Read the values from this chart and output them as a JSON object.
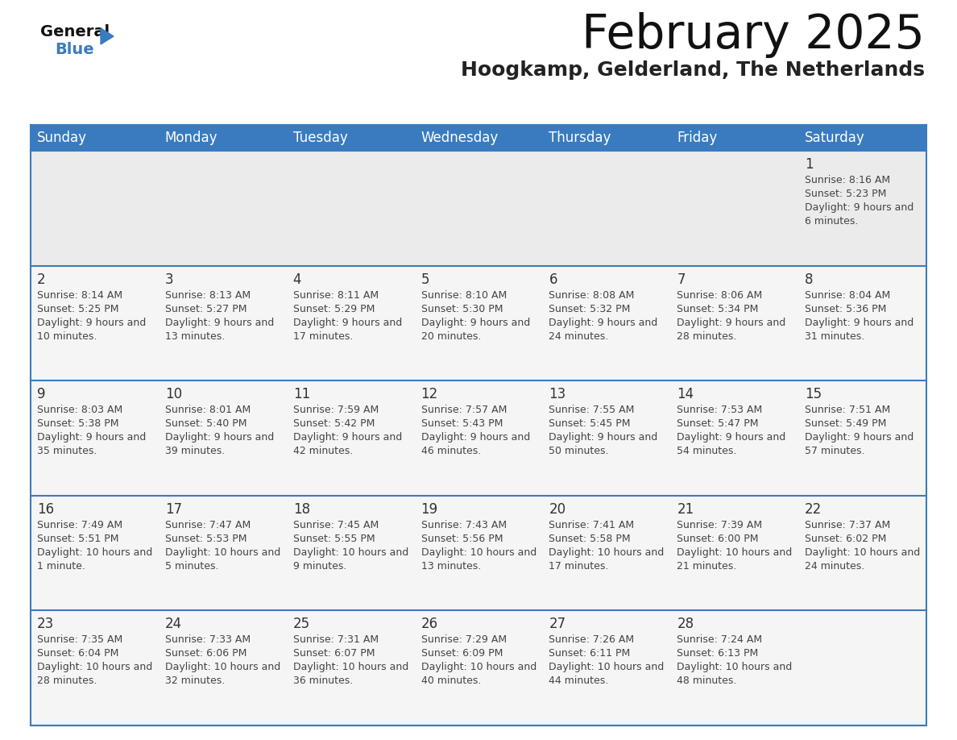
{
  "title": "February 2025",
  "subtitle": "Hoogkamp, Gelderland, The Netherlands",
  "days_of_week": [
    "Sunday",
    "Monday",
    "Tuesday",
    "Wednesday",
    "Thursday",
    "Friday",
    "Saturday"
  ],
  "header_bg": "#3a7bbf",
  "header_text": "#ffffff",
  "row0_bg": "#e8e8e8",
  "cell_bg": "#f0f0f0",
  "border_color": "#3a7bbf",
  "text_color": "#333333",
  "calendar_data": [
    {
      "day": 1,
      "col": 6,
      "row": 0,
      "sunrise": "8:16 AM",
      "sunset": "5:23 PM",
      "daylight": "9 hours and 6 minutes."
    },
    {
      "day": 2,
      "col": 0,
      "row": 1,
      "sunrise": "8:14 AM",
      "sunset": "5:25 PM",
      "daylight": "9 hours and 10 minutes."
    },
    {
      "day": 3,
      "col": 1,
      "row": 1,
      "sunrise": "8:13 AM",
      "sunset": "5:27 PM",
      "daylight": "9 hours and 13 minutes."
    },
    {
      "day": 4,
      "col": 2,
      "row": 1,
      "sunrise": "8:11 AM",
      "sunset": "5:29 PM",
      "daylight": "9 hours and 17 minutes."
    },
    {
      "day": 5,
      "col": 3,
      "row": 1,
      "sunrise": "8:10 AM",
      "sunset": "5:30 PM",
      "daylight": "9 hours and 20 minutes."
    },
    {
      "day": 6,
      "col": 4,
      "row": 1,
      "sunrise": "8:08 AM",
      "sunset": "5:32 PM",
      "daylight": "9 hours and 24 minutes."
    },
    {
      "day": 7,
      "col": 5,
      "row": 1,
      "sunrise": "8:06 AM",
      "sunset": "5:34 PM",
      "daylight": "9 hours and 28 minutes."
    },
    {
      "day": 8,
      "col": 6,
      "row": 1,
      "sunrise": "8:04 AM",
      "sunset": "5:36 PM",
      "daylight": "9 hours and 31 minutes."
    },
    {
      "day": 9,
      "col": 0,
      "row": 2,
      "sunrise": "8:03 AM",
      "sunset": "5:38 PM",
      "daylight": "9 hours and 35 minutes."
    },
    {
      "day": 10,
      "col": 1,
      "row": 2,
      "sunrise": "8:01 AM",
      "sunset": "5:40 PM",
      "daylight": "9 hours and 39 minutes."
    },
    {
      "day": 11,
      "col": 2,
      "row": 2,
      "sunrise": "7:59 AM",
      "sunset": "5:42 PM",
      "daylight": "9 hours and 42 minutes."
    },
    {
      "day": 12,
      "col": 3,
      "row": 2,
      "sunrise": "7:57 AM",
      "sunset": "5:43 PM",
      "daylight": "9 hours and 46 minutes."
    },
    {
      "day": 13,
      "col": 4,
      "row": 2,
      "sunrise": "7:55 AM",
      "sunset": "5:45 PM",
      "daylight": "9 hours and 50 minutes."
    },
    {
      "day": 14,
      "col": 5,
      "row": 2,
      "sunrise": "7:53 AM",
      "sunset": "5:47 PM",
      "daylight": "9 hours and 54 minutes."
    },
    {
      "day": 15,
      "col": 6,
      "row": 2,
      "sunrise": "7:51 AM",
      "sunset": "5:49 PM",
      "daylight": "9 hours and 57 minutes."
    },
    {
      "day": 16,
      "col": 0,
      "row": 3,
      "sunrise": "7:49 AM",
      "sunset": "5:51 PM",
      "daylight": "10 hours and 1 minute."
    },
    {
      "day": 17,
      "col": 1,
      "row": 3,
      "sunrise": "7:47 AM",
      "sunset": "5:53 PM",
      "daylight": "10 hours and 5 minutes."
    },
    {
      "day": 18,
      "col": 2,
      "row": 3,
      "sunrise": "7:45 AM",
      "sunset": "5:55 PM",
      "daylight": "10 hours and 9 minutes."
    },
    {
      "day": 19,
      "col": 3,
      "row": 3,
      "sunrise": "7:43 AM",
      "sunset": "5:56 PM",
      "daylight": "10 hours and 13 minutes."
    },
    {
      "day": 20,
      "col": 4,
      "row": 3,
      "sunrise": "7:41 AM",
      "sunset": "5:58 PM",
      "daylight": "10 hours and 17 minutes."
    },
    {
      "day": 21,
      "col": 5,
      "row": 3,
      "sunrise": "7:39 AM",
      "sunset": "6:00 PM",
      "daylight": "10 hours and 21 minutes."
    },
    {
      "day": 22,
      "col": 6,
      "row": 3,
      "sunrise": "7:37 AM",
      "sunset": "6:02 PM",
      "daylight": "10 hours and 24 minutes."
    },
    {
      "day": 23,
      "col": 0,
      "row": 4,
      "sunrise": "7:35 AM",
      "sunset": "6:04 PM",
      "daylight": "10 hours and 28 minutes."
    },
    {
      "day": 24,
      "col": 1,
      "row": 4,
      "sunrise": "7:33 AM",
      "sunset": "6:06 PM",
      "daylight": "10 hours and 32 minutes."
    },
    {
      "day": 25,
      "col": 2,
      "row": 4,
      "sunrise": "7:31 AM",
      "sunset": "6:07 PM",
      "daylight": "10 hours and 36 minutes."
    },
    {
      "day": 26,
      "col": 3,
      "row": 4,
      "sunrise": "7:29 AM",
      "sunset": "6:09 PM",
      "daylight": "10 hours and 40 minutes."
    },
    {
      "day": 27,
      "col": 4,
      "row": 4,
      "sunrise": "7:26 AM",
      "sunset": "6:11 PM",
      "daylight": "10 hours and 44 minutes."
    },
    {
      "day": 28,
      "col": 5,
      "row": 4,
      "sunrise": "7:24 AM",
      "sunset": "6:13 PM",
      "daylight": "10 hours and 48 minutes."
    }
  ]
}
